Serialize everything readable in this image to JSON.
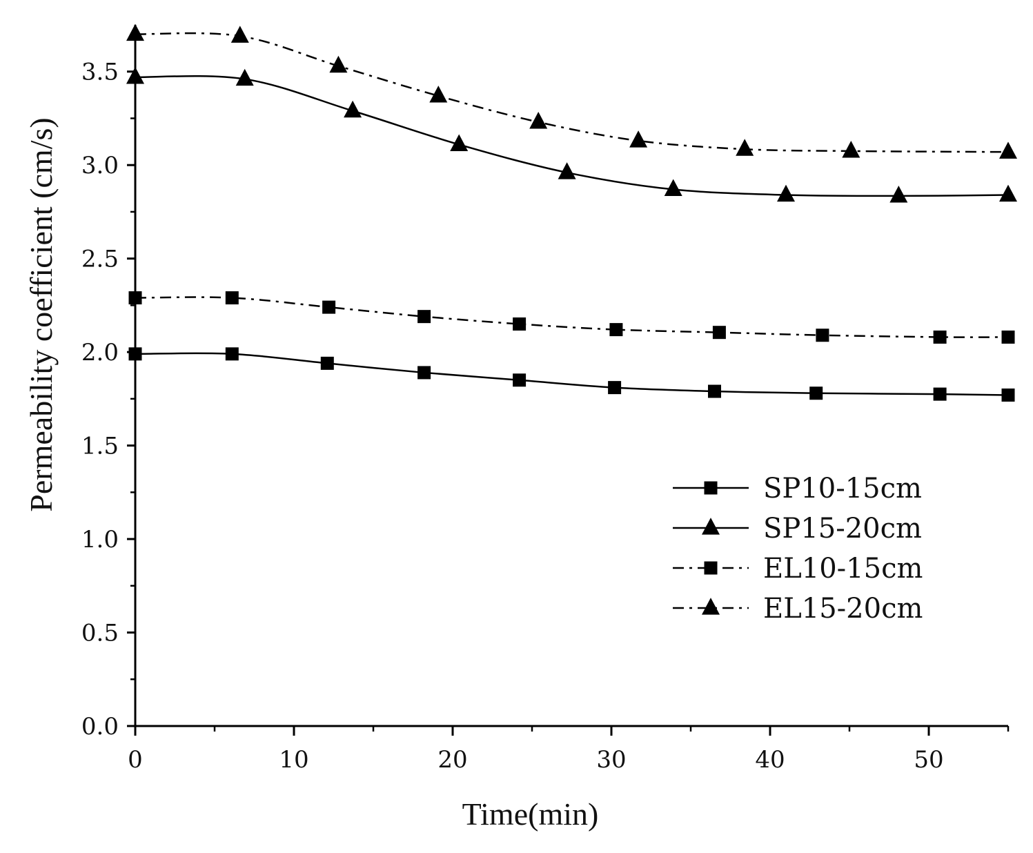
{
  "chart_data": {
    "type": "line",
    "title": "",
    "xlabel": "Time(min)",
    "ylabel": "Permeability coefficient (cm/s)",
    "xlim": [
      0,
      55
    ],
    "ylim": [
      0,
      3.75
    ],
    "xticks": [
      0,
      10,
      20,
      30,
      40,
      50
    ],
    "xtick_labels": [
      "0",
      "10",
      "20",
      "30",
      "40",
      "50"
    ],
    "yticks": [
      0,
      0.5,
      1.0,
      1.5,
      2.0,
      2.5,
      3.0,
      3.5
    ],
    "ytick_labels": [
      "0.0",
      "0.5",
      "1.0",
      "1.5",
      "2.0",
      "2.5",
      "3.0",
      "3.5"
    ],
    "grid": false,
    "legend_position": "center-right",
    "series": [
      {
        "name": "SP10-15cm",
        "line_style": "solid",
        "marker": "square",
        "x": [
          0,
          6.1,
          12.1,
          18.2,
          24.2,
          30.2,
          36.5,
          42.9,
          50.7,
          55
        ],
        "y": [
          1.99,
          1.99,
          1.94,
          1.89,
          1.85,
          1.81,
          1.79,
          1.78,
          1.775,
          1.77
        ]
      },
      {
        "name": "SP15-20cm",
        "line_style": "solid",
        "marker": "triangle",
        "x": [
          0,
          6.9,
          13.7,
          20.4,
          27.2,
          33.9,
          41.0,
          48.1,
          55
        ],
        "y": [
          3.47,
          3.46,
          3.29,
          3.11,
          2.96,
          2.87,
          2.84,
          2.835,
          2.84
        ]
      },
      {
        "name": "EL10-15cm",
        "line_style": "dash-dot",
        "marker": "square",
        "x": [
          0,
          6.1,
          12.2,
          18.2,
          24.2,
          30.3,
          36.8,
          43.3,
          50.7,
          55
        ],
        "y": [
          2.29,
          2.29,
          2.24,
          2.19,
          2.15,
          2.12,
          2.105,
          2.09,
          2.08,
          2.08
        ]
      },
      {
        "name": "EL15-20cm",
        "line_style": "dash-dot",
        "marker": "triangle",
        "x": [
          0,
          6.6,
          12.8,
          19.1,
          25.4,
          31.7,
          38.4,
          45.1,
          55
        ],
        "y": [
          3.7,
          3.69,
          3.53,
          3.37,
          3.23,
          3.13,
          3.085,
          3.075,
          3.07
        ]
      }
    ]
  }
}
